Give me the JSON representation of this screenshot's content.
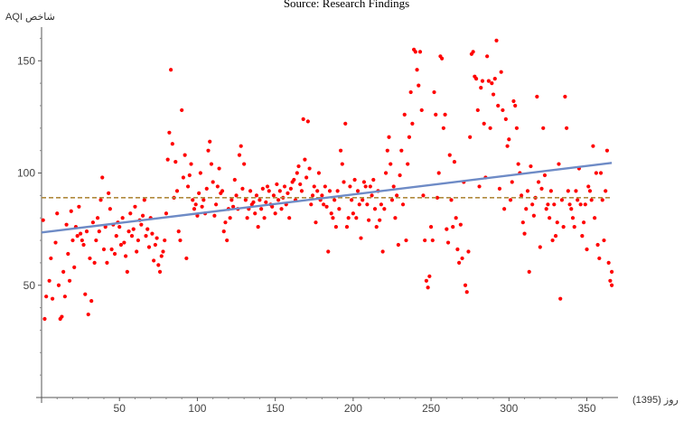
{
  "source_caption": "Source: Research Findings",
  "chart_data": {
    "type": "scatter",
    "title": "",
    "ylabel": "شاخص AQI",
    "xlabel": "روز (1395)",
    "xlim": [
      0,
      370
    ],
    "ylim": [
      0,
      165
    ],
    "xticks": [
      50,
      100,
      150,
      200,
      250,
      300,
      350
    ],
    "yticks": [
      50,
      100,
      150
    ],
    "grid": false,
    "point_color": "#ff0000",
    "trend": {
      "x0": 0,
      "y0": 73.5,
      "x1": 366,
      "y1": 104.5,
      "color": "#6e8bc6"
    },
    "mean_line": {
      "y": 89,
      "color": "#b08a3e"
    },
    "points": [
      [
        1,
        79
      ],
      [
        2,
        35
      ],
      [
        3,
        45
      ],
      [
        5,
        52
      ],
      [
        6,
        62
      ],
      [
        7,
        44
      ],
      [
        9,
        69
      ],
      [
        10,
        82
      ],
      [
        11,
        50
      ],
      [
        12,
        35
      ],
      [
        13,
        36
      ],
      [
        14,
        56
      ],
      [
        15,
        45
      ],
      [
        16,
        77
      ],
      [
        17,
        64
      ],
      [
        18,
        52
      ],
      [
        19,
        83
      ],
      [
        20,
        70
      ],
      [
        21,
        58
      ],
      [
        22,
        76
      ],
      [
        23,
        72
      ],
      [
        24,
        85
      ],
      [
        25,
        73
      ],
      [
        26,
        70
      ],
      [
        27,
        68
      ],
      [
        28,
        46
      ],
      [
        29,
        74
      ],
      [
        30,
        37
      ],
      [
        31,
        62
      ],
      [
        32,
        43
      ],
      [
        33,
        78
      ],
      [
        34,
        60
      ],
      [
        35,
        70
      ],
      [
        36,
        80
      ],
      [
        37,
        74
      ],
      [
        38,
        88
      ],
      [
        39,
        98
      ],
      [
        40,
        66
      ],
      [
        41,
        76
      ],
      [
        42,
        60
      ],
      [
        43,
        91
      ],
      [
        44,
        84
      ],
      [
        45,
        66
      ],
      [
        46,
        77
      ],
      [
        47,
        64
      ],
      [
        48,
        72
      ],
      [
        49,
        78
      ],
      [
        50,
        76
      ],
      [
        51,
        68
      ],
      [
        52,
        80
      ],
      [
        53,
        69
      ],
      [
        54,
        63
      ],
      [
        55,
        56
      ],
      [
        56,
        74
      ],
      [
        57,
        82
      ],
      [
        58,
        72
      ],
      [
        59,
        75
      ],
      [
        60,
        85
      ],
      [
        61,
        65
      ],
      [
        62,
        70
      ],
      [
        63,
        79
      ],
      [
        64,
        77
      ],
      [
        65,
        81
      ],
      [
        66,
        88
      ],
      [
        67,
        72
      ],
      [
        68,
        75
      ],
      [
        69,
        67
      ],
      [
        70,
        80
      ],
      [
        71,
        73
      ],
      [
        72,
        61
      ],
      [
        73,
        68
      ],
      [
        74,
        71
      ],
      [
        75,
        59
      ],
      [
        76,
        56
      ],
      [
        77,
        63
      ],
      [
        78,
        65
      ],
      [
        79,
        70
      ],
      [
        80,
        82
      ],
      [
        81,
        106
      ],
      [
        82,
        118
      ],
      [
        83,
        146
      ],
      [
        84,
        113
      ],
      [
        85,
        89
      ],
      [
        86,
        105
      ],
      [
        87,
        92
      ],
      [
        88,
        74
      ],
      [
        89,
        70
      ],
      [
        90,
        128
      ],
      [
        91,
        98
      ],
      [
        92,
        108
      ],
      [
        93,
        62
      ],
      [
        94,
        94
      ],
      [
        95,
        99
      ],
      [
        96,
        104
      ],
      [
        97,
        88
      ],
      [
        98,
        84
      ],
      [
        99,
        86
      ],
      [
        100,
        81
      ],
      [
        101,
        91
      ],
      [
        102,
        100
      ],
      [
        103,
        85
      ],
      [
        104,
        88
      ],
      [
        105,
        82
      ],
      [
        106,
        93
      ],
      [
        107,
        110
      ],
      [
        108,
        114
      ],
      [
        109,
        104
      ],
      [
        110,
        96
      ],
      [
        111,
        81
      ],
      [
        112,
        86
      ],
      [
        113,
        94
      ],
      [
        114,
        102
      ],
      [
        115,
        91
      ],
      [
        116,
        92
      ],
      [
        117,
        74
      ],
      [
        118,
        78
      ],
      [
        119,
        70
      ],
      [
        120,
        84
      ],
      [
        121,
        80
      ],
      [
        122,
        88
      ],
      [
        123,
        85
      ],
      [
        124,
        97
      ],
      [
        125,
        90
      ],
      [
        126,
        84
      ],
      [
        127,
        108
      ],
      [
        128,
        112
      ],
      [
        129,
        93
      ],
      [
        130,
        104
      ],
      [
        131,
        88
      ],
      [
        132,
        80
      ],
      [
        133,
        84
      ],
      [
        134,
        92
      ],
      [
        135,
        86
      ],
      [
        136,
        87
      ],
      [
        137,
        82
      ],
      [
        138,
        90
      ],
      [
        139,
        76
      ],
      [
        140,
        88
      ],
      [
        141,
        84
      ],
      [
        142,
        93
      ],
      [
        143,
        80
      ],
      [
        144,
        87
      ],
      [
        145,
        94
      ],
      [
        146,
        92
      ],
      [
        147,
        86
      ],
      [
        148,
        85
      ],
      [
        149,
        90
      ],
      [
        150,
        82
      ],
      [
        151,
        95
      ],
      [
        152,
        88
      ],
      [
        153,
        92
      ],
      [
        154,
        84
      ],
      [
        155,
        89
      ],
      [
        156,
        94
      ],
      [
        157,
        86
      ],
      [
        158,
        91
      ],
      [
        159,
        80
      ],
      [
        160,
        93
      ],
      [
        161,
        96
      ],
      [
        162,
        97
      ],
      [
        163,
        88
      ],
      [
        164,
        100
      ],
      [
        165,
        103
      ],
      [
        166,
        95
      ],
      [
        167,
        92
      ],
      [
        168,
        124
      ],
      [
        169,
        106
      ],
      [
        170,
        98
      ],
      [
        171,
        123
      ],
      [
        172,
        102
      ],
      [
        173,
        86
      ],
      [
        174,
        90
      ],
      [
        175,
        94
      ],
      [
        176,
        78
      ],
      [
        177,
        92
      ],
      [
        178,
        100
      ],
      [
        179,
        88
      ],
      [
        180,
        90
      ],
      [
        181,
        86
      ],
      [
        182,
        94
      ],
      [
        183,
        85
      ],
      [
        184,
        65
      ],
      [
        185,
        92
      ],
      [
        186,
        82
      ],
      [
        187,
        80
      ],
      [
        188,
        88
      ],
      [
        189,
        76
      ],
      [
        190,
        92
      ],
      [
        191,
        84
      ],
      [
        192,
        110
      ],
      [
        193,
        104
      ],
      [
        194,
        96
      ],
      [
        195,
        122
      ],
      [
        196,
        76
      ],
      [
        197,
        80
      ],
      [
        198,
        94
      ],
      [
        199,
        88
      ],
      [
        200,
        82
      ],
      [
        201,
        97
      ],
      [
        202,
        80
      ],
      [
        203,
        92
      ],
      [
        204,
        86
      ],
      [
        205,
        71
      ],
      [
        206,
        88
      ],
      [
        207,
        96
      ],
      [
        208,
        94
      ],
      [
        209,
        86
      ],
      [
        210,
        79
      ],
      [
        211,
        94
      ],
      [
        212,
        90
      ],
      [
        213,
        97
      ],
      [
        214,
        84
      ],
      [
        215,
        76
      ],
      [
        216,
        92
      ],
      [
        217,
        79
      ],
      [
        218,
        86
      ],
      [
        219,
        65
      ],
      [
        220,
        84
      ],
      [
        221,
        100
      ],
      [
        222,
        110
      ],
      [
        223,
        116
      ],
      [
        224,
        104
      ],
      [
        225,
        88
      ],
      [
        226,
        94
      ],
      [
        227,
        80
      ],
      [
        228,
        90
      ],
      [
        229,
        68
      ],
      [
        230,
        99
      ],
      [
        231,
        110
      ],
      [
        232,
        86
      ],
      [
        233,
        126
      ],
      [
        234,
        70
      ],
      [
        235,
        104
      ],
      [
        236,
        116
      ],
      [
        237,
        136
      ],
      [
        238,
        122
      ],
      [
        239,
        155
      ],
      [
        240,
        154
      ],
      [
        241,
        146
      ],
      [
        242,
        139
      ],
      [
        243,
        154
      ],
      [
        244,
        128
      ],
      [
        245,
        90
      ],
      [
        246,
        70
      ],
      [
        247,
        52
      ],
      [
        248,
        49
      ],
      [
        249,
        54
      ],
      [
        250,
        76
      ],
      [
        251,
        70
      ],
      [
        252,
        136
      ],
      [
        253,
        126
      ],
      [
        254,
        89
      ],
      [
        255,
        100
      ],
      [
        256,
        152
      ],
      [
        257,
        151
      ],
      [
        258,
        120
      ],
      [
        259,
        126
      ],
      [
        260,
        75
      ],
      [
        261,
        69
      ],
      [
        262,
        108
      ],
      [
        263,
        88
      ],
      [
        264,
        76
      ],
      [
        265,
        105
      ],
      [
        266,
        80
      ],
      [
        267,
        66
      ],
      [
        268,
        60
      ],
      [
        269,
        77
      ],
      [
        270,
        62
      ],
      [
        271,
        96
      ],
      [
        272,
        50
      ],
      [
        273,
        47
      ],
      [
        274,
        65
      ],
      [
        275,
        116
      ],
      [
        276,
        153
      ],
      [
        277,
        154
      ],
      [
        278,
        143
      ],
      [
        279,
        142
      ],
      [
        280,
        128
      ],
      [
        281,
        94
      ],
      [
        282,
        138
      ],
      [
        283,
        141
      ],
      [
        284,
        122
      ],
      [
        285,
        98
      ],
      [
        286,
        152
      ],
      [
        287,
        141
      ],
      [
        288,
        120
      ],
      [
        289,
        140
      ],
      [
        290,
        135
      ],
      [
        291,
        142
      ],
      [
        292,
        159
      ],
      [
        293,
        130
      ],
      [
        294,
        93
      ],
      [
        295,
        145
      ],
      [
        296,
        128
      ],
      [
        297,
        84
      ],
      [
        298,
        124
      ],
      [
        299,
        112
      ],
      [
        300,
        115
      ],
      [
        301,
        88
      ],
      [
        302,
        96
      ],
      [
        303,
        132
      ],
      [
        304,
        130
      ],
      [
        305,
        120
      ],
      [
        306,
        104
      ],
      [
        307,
        100
      ],
      [
        308,
        90
      ],
      [
        309,
        78
      ],
      [
        310,
        73
      ],
      [
        311,
        84
      ],
      [
        312,
        92
      ],
      [
        313,
        56
      ],
      [
        314,
        103
      ],
      [
        315,
        86
      ],
      [
        316,
        81
      ],
      [
        317,
        89
      ],
      [
        318,
        134
      ],
      [
        319,
        96
      ],
      [
        320,
        67
      ],
      [
        321,
        93
      ],
      [
        322,
        120
      ],
      [
        323,
        99
      ],
      [
        324,
        84
      ],
      [
        325,
        86
      ],
      [
        326,
        80
      ],
      [
        327,
        92
      ],
      [
        328,
        70
      ],
      [
        329,
        86
      ],
      [
        330,
        72
      ],
      [
        331,
        78
      ],
      [
        332,
        104
      ],
      [
        333,
        44
      ],
      [
        334,
        88
      ],
      [
        335,
        76
      ],
      [
        336,
        134
      ],
      [
        337,
        120
      ],
      [
        338,
        92
      ],
      [
        339,
        86
      ],
      [
        340,
        84
      ],
      [
        341,
        80
      ],
      [
        342,
        76
      ],
      [
        343,
        92
      ],
      [
        344,
        88
      ],
      [
        345,
        102
      ],
      [
        346,
        86
      ],
      [
        347,
        72
      ],
      [
        348,
        78
      ],
      [
        349,
        86
      ],
      [
        350,
        66
      ],
      [
        351,
        94
      ],
      [
        352,
        92
      ],
      [
        353,
        88
      ],
      [
        354,
        112
      ],
      [
        355,
        80
      ],
      [
        356,
        100
      ],
      [
        357,
        68
      ],
      [
        358,
        62
      ],
      [
        359,
        100
      ],
      [
        360,
        88
      ],
      [
        361,
        70
      ],
      [
        362,
        92
      ],
      [
        363,
        110
      ],
      [
        364,
        60
      ],
      [
        365,
        52
      ],
      [
        366,
        56
      ],
      [
        366,
        50
      ]
    ]
  }
}
